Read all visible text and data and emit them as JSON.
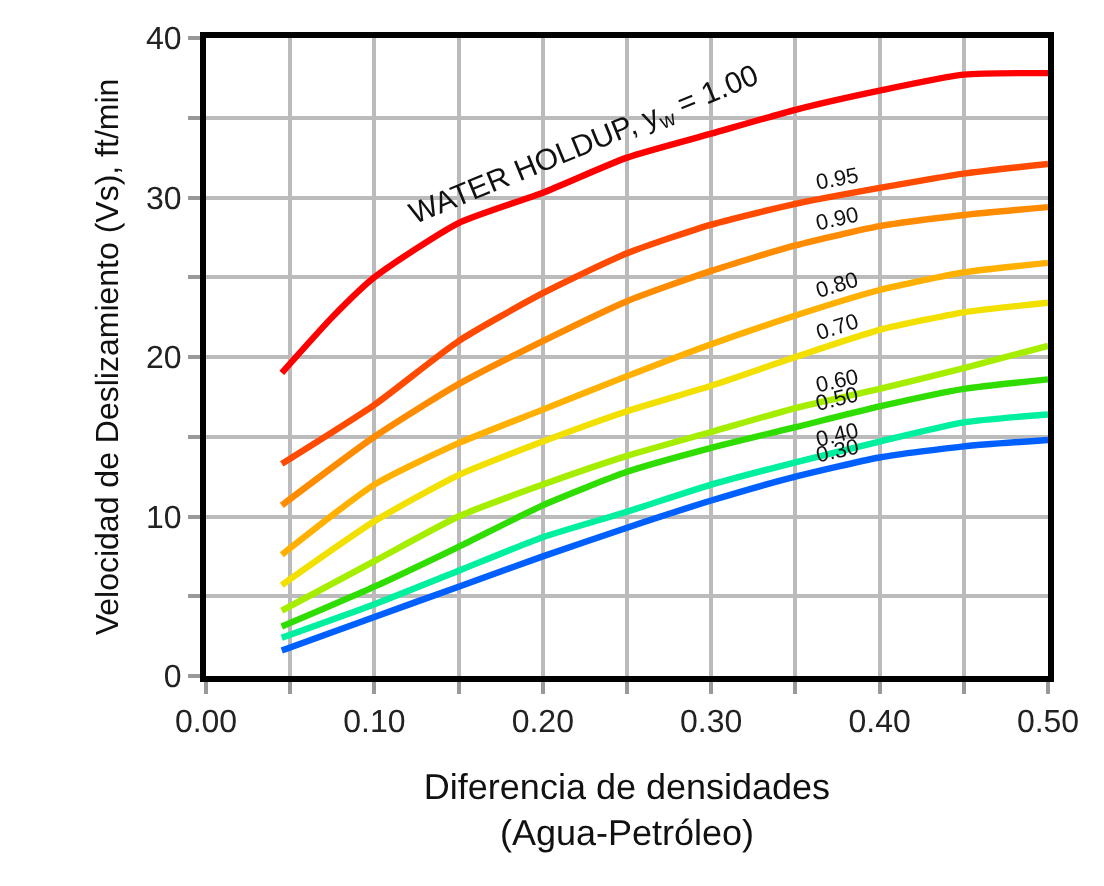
{
  "chart_data": {
    "type": "line",
    "xlabel": "Diferencia de densidades\n(Agua-Petróleo)",
    "ylabel": "Velocidad de Deslizamiento (Vs), ft/min",
    "xlim": [
      0,
      0.5
    ],
    "ylim": [
      0,
      40
    ],
    "xticks": [
      {
        "value": 0,
        "label": "0.00"
      },
      {
        "value": 0.05,
        "label": null
      },
      {
        "value": 0.1,
        "label": "0.10"
      },
      {
        "value": 0.15,
        "label": null
      },
      {
        "value": 0.2,
        "label": "0.20"
      },
      {
        "value": 0.25,
        "label": null
      },
      {
        "value": 0.3,
        "label": "0.30"
      },
      {
        "value": 0.35,
        "label": null
      },
      {
        "value": 0.4,
        "label": "0.40"
      },
      {
        "value": 0.45,
        "label": null
      },
      {
        "value": 0.5,
        "label": "0.50"
      }
    ],
    "yticks": [
      0,
      {
        "value": 5,
        "label": null
      },
      10,
      {
        "value": 15,
        "label": null
      },
      20,
      {
        "value": 25,
        "label": null
      },
      30,
      {
        "value": 35,
        "label": null
      },
      40
    ],
    "grid": true,
    "legend": false,
    "marker": "none",
    "line_style": "solid",
    "x": [
      0.045,
      0.1,
      0.15,
      0.2,
      0.25,
      0.3,
      0.35,
      0.4,
      0.45,
      0.5
    ],
    "series": [
      {
        "name": "WATER HOLDUP, y$_{w}$ = 1.00",
        "color": "#ff0000",
        "x": [
          0.045,
          0.075,
          0.1,
          0.15,
          0.2,
          0.25,
          0.3,
          0.35,
          0.4,
          0.45,
          0.5
        ],
        "values": [
          19.0,
          22.5,
          25.0,
          28.4,
          30.3,
          32.5,
          34.0,
          35.5,
          36.7,
          37.7,
          37.8
        ]
      },
      {
        "name": "0.95",
        "color": "#ff4a00",
        "values": [
          13.3,
          17.0,
          21.0,
          24.0,
          26.5,
          28.3,
          29.6,
          30.6,
          31.5,
          32.1
        ]
      },
      {
        "name": "0.90",
        "color": "#ff8c00",
        "values": [
          10.7,
          15.0,
          18.3,
          21.0,
          23.5,
          25.4,
          27.0,
          28.2,
          28.9,
          29.4
        ]
      },
      {
        "name": "0.80",
        "color": "#ffb000",
        "values": [
          7.6,
          12.0,
          14.6,
          16.7,
          18.8,
          20.8,
          22.6,
          24.2,
          25.3,
          25.9
        ]
      },
      {
        "name": "0.70",
        "color": "#f2e000",
        "values": [
          5.7,
          9.7,
          12.6,
          14.7,
          16.6,
          18.2,
          20.0,
          21.7,
          22.8,
          23.4
        ]
      },
      {
        "name": "0.60",
        "color": "#a6ee00",
        "values": [
          4.1,
          7.2,
          10.0,
          12.0,
          13.8,
          15.3,
          16.8,
          18.0,
          19.3,
          20.7
        ]
      },
      {
        "name": "0.50",
        "color": "#30dd00",
        "values": [
          3.1,
          5.6,
          8.1,
          10.7,
          12.8,
          14.3,
          15.6,
          16.9,
          18.0,
          18.6
        ]
      },
      {
        "name": "0.40",
        "color": "#00f0a0",
        "values": [
          2.4,
          4.5,
          6.6,
          8.7,
          10.3,
          12.0,
          13.4,
          14.7,
          15.9,
          16.4
        ]
      },
      {
        "name": "0.30",
        "color": "#0060ff",
        "values": [
          1.6,
          3.7,
          5.6,
          7.5,
          9.3,
          11.0,
          12.5,
          13.7,
          14.4,
          14.8
        ]
      }
    ]
  }
}
